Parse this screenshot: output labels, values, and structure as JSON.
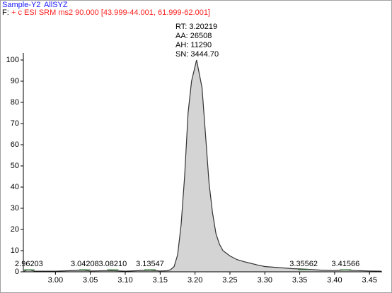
{
  "chart_data": {
    "type": "line",
    "sample": "Sample-Y2",
    "sample_name": "AllSYZ",
    "filter_prefix": "F:",
    "filter": "+ c ESI SRM ms2 90.000 [43.999-44.001, 61.999-62.001]",
    "peak_info": [
      "RT: 3.20219",
      "AA: 26508",
      "AH: 11290",
      "SN: 3444.70"
    ],
    "x": [
      2.955,
      2.96,
      2.965,
      2.97,
      3.0,
      3.04,
      3.05,
      3.08,
      3.1,
      3.135,
      3.15,
      3.16,
      3.165,
      3.17,
      3.175,
      3.18,
      3.185,
      3.19,
      3.195,
      3.2022,
      3.21,
      3.215,
      3.22,
      3.225,
      3.23,
      3.235,
      3.24,
      3.25,
      3.26,
      3.27,
      3.28,
      3.29,
      3.3,
      3.32,
      3.34,
      3.355,
      3.36,
      3.38,
      3.4,
      3.415,
      3.43,
      3.45,
      3.467
    ],
    "values": [
      0.3,
      1.0,
      0.8,
      0.3,
      0.3,
      0.8,
      0.4,
      0.6,
      0.3,
      0.8,
      0.4,
      0.5,
      1.0,
      2.5,
      8,
      22,
      45,
      75,
      90,
      100,
      87,
      65,
      42,
      28,
      18,
      13,
      10,
      7.5,
      5.8,
      4.8,
      4,
      3.2,
      2.5,
      2,
      1.5,
      1.3,
      1.2,
      0.8,
      0.6,
      0.9,
      0.6,
      0.4,
      0.3
    ],
    "line_color": "#333333",
    "fill_color": "#d4d4d4",
    "peak_labels": [
      {
        "value": 2.96203,
        "label": "2.96203"
      },
      {
        "value": 3.04208,
        "label": "3.04208"
      },
      {
        "value": 3.0821,
        "label": "3.08210"
      },
      {
        "value": 3.13547,
        "label": "3.13547"
      },
      {
        "value": 3.35562,
        "label": "3.35562"
      },
      {
        "value": 3.41566,
        "label": "3.41566"
      }
    ],
    "xlim": [
      2.954,
      3.468
    ],
    "ylim": [
      0,
      102
    ],
    "xticks": [
      {
        "value": 3.0,
        "label": "3.00"
      },
      3.05,
      {
        "value": 3.1,
        "label": "3.10"
      },
      3.15,
      {
        "value": 3.2,
        "label": "3.20"
      },
      3.25,
      {
        "value": 3.3,
        "label": "3.30"
      },
      3.35,
      {
        "value": 3.4,
        "label": "3.40"
      },
      3.45
    ],
    "yticks": [
      0,
      10,
      20,
      30,
      40,
      50,
      60,
      70,
      80,
      90,
      100
    ]
  }
}
